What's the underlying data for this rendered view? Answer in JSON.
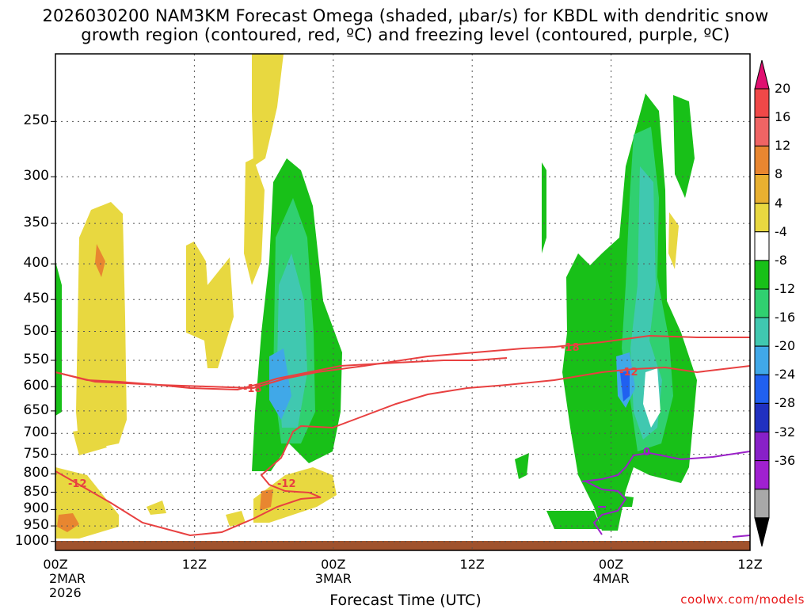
{
  "title_line1": "2026030200 NAM3KM Forecast Omega (shaded, μbar/s) for KBDL with dendritic snow",
  "title_line2": "growth region (contoured, red, ºC) and freezing level (contoured, purple, ºC)",
  "chart_data": {
    "type": "contour",
    "title": "2026030200 NAM3KM Forecast Omega (shaded, μbar/s) for KBDL with dendritic snow growth region (contoured, red, ºC) and freezing level (contoured, purple, ºC)",
    "xlabel": "Forecast Time (UTC)",
    "ylabel": "",
    "x_ticks": [
      {
        "hour": 0,
        "label": "00Z",
        "sub1": "2MAR",
        "sub2": "2026"
      },
      {
        "hour": 12,
        "label": "12Z",
        "sub1": "",
        "sub2": ""
      },
      {
        "hour": 24,
        "label": "00Z",
        "sub1": "3MAR",
        "sub2": ""
      },
      {
        "hour": 36,
        "label": "12Z",
        "sub1": "",
        "sub2": ""
      },
      {
        "hour": 48,
        "label": "00Z",
        "sub1": "4MAR",
        "sub2": ""
      },
      {
        "hour": 60,
        "label": "12Z",
        "sub1": "",
        "sub2": ""
      }
    ],
    "y_ticks": [
      250,
      300,
      350,
      400,
      450,
      500,
      550,
      600,
      650,
      700,
      750,
      800,
      850,
      900,
      950,
      1000
    ],
    "y_axis": "pressure_hPa_log",
    "ylim": [
      200,
      1030
    ],
    "xlim": [
      0,
      60
    ],
    "grid": true,
    "colorbar": {
      "unit": "μbar/s",
      "labels": [
        20,
        16,
        12,
        8,
        4,
        -4,
        -8,
        -12,
        -16,
        -20,
        -24,
        -28,
        -32,
        -36
      ],
      "colors_top_to_bottom": [
        "#e01070",
        "#f04848",
        "#f06464",
        "#e88630",
        "#e8b030",
        "#e8d840",
        "#ffffff",
        "#18c018",
        "#30d070",
        "#40c8b0",
        "#40a8e8",
        "#2060f0",
        "#2030c0",
        "#8820c8",
        "#a020d0",
        "#a8a8a8",
        "#000000"
      ]
    },
    "contours": [
      {
        "field": "temperature",
        "color": "#e84040",
        "level": -12,
        "labels": [
          "-12",
          "-12",
          "-12"
        ]
      },
      {
        "field": "temperature",
        "color": "#e84040",
        "level": -18,
        "labels": [
          "-18",
          "-18"
        ]
      },
      {
        "field": "freezing_level",
        "color": "#9a20c8",
        "level": 0,
        "labels": [
          "0"
        ]
      }
    ]
  },
  "credit": "coolwx.com/models"
}
